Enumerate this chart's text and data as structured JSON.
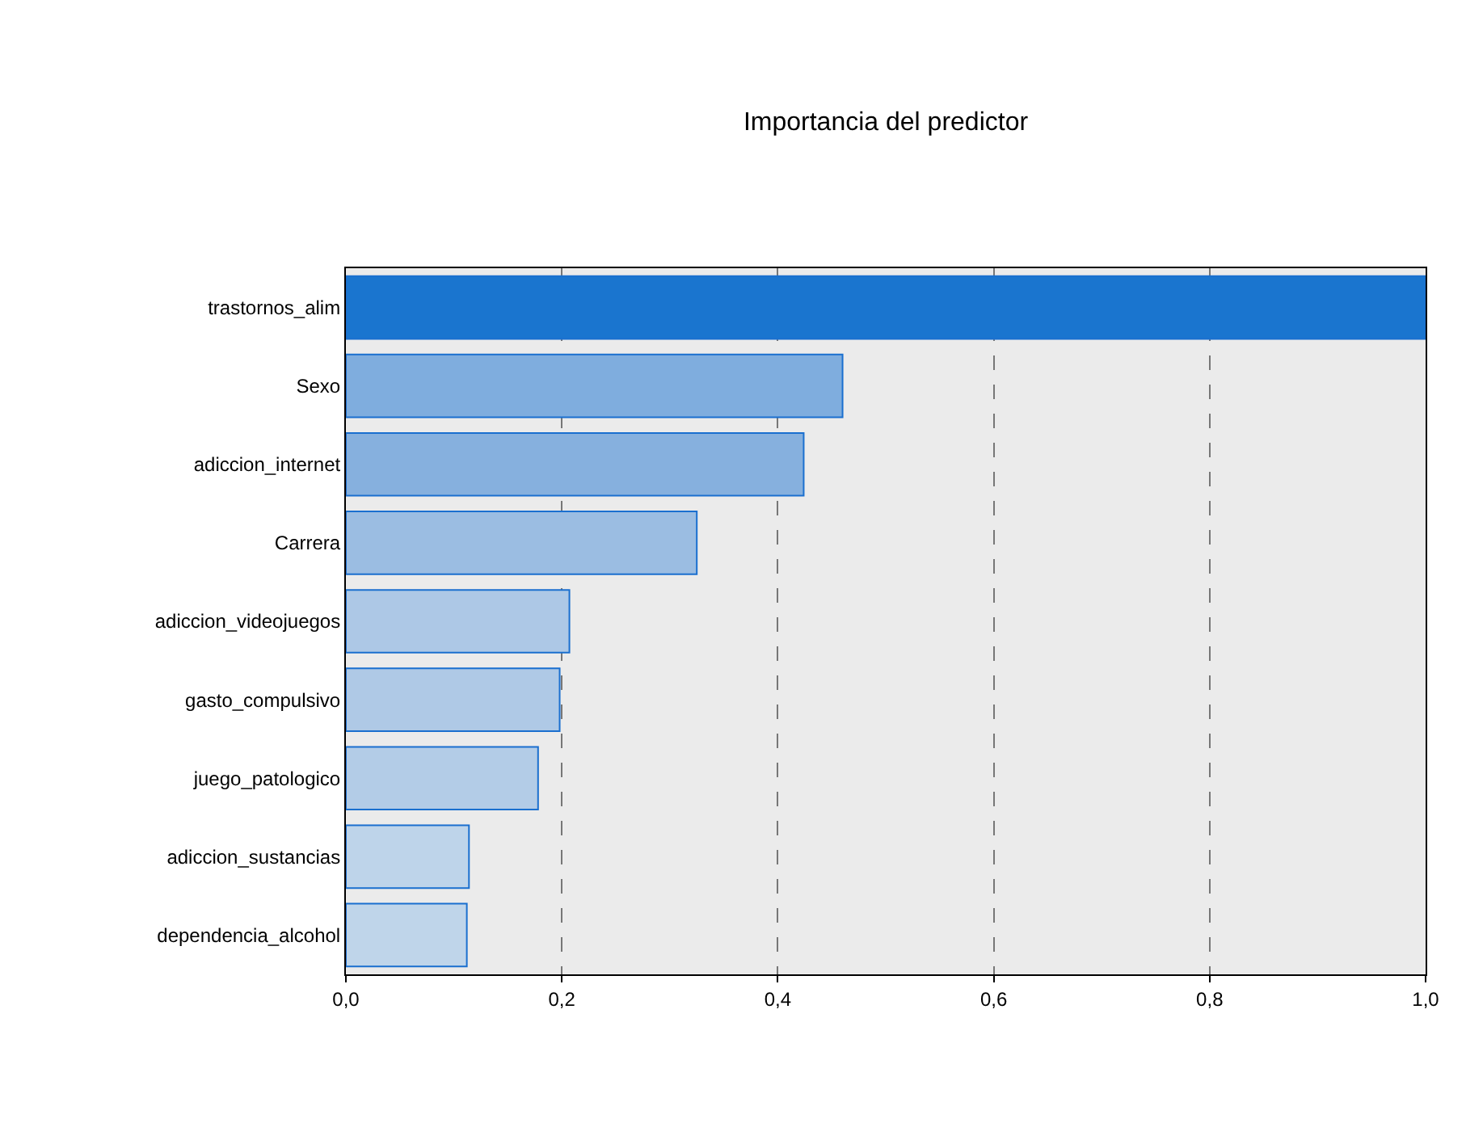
{
  "chart_data": {
    "type": "bar",
    "orientation": "horizontal",
    "title": "Importancia del predictor",
    "categories": [
      "trastornos_alim",
      "Sexo",
      "adiccion_internet",
      "Carrera",
      "adiccion_videojuegos",
      "gasto_compulsivo",
      "juego_patologico",
      "adiccion_sustancias",
      "dependencia_alcohol"
    ],
    "values": [
      1.0,
      0.46,
      0.424,
      0.325,
      0.207,
      0.198,
      0.178,
      0.114,
      0.112
    ],
    "colors": [
      "#1a75cf",
      "#7fadde",
      "#86b0de",
      "#9bbde2",
      "#adc8e6",
      "#afc9e6",
      "#b3cce7",
      "#bed4ea",
      "#bfd5ea"
    ],
    "xlim": [
      0,
      1.0
    ],
    "xticks": [
      {
        "value": 0,
        "label": "0,0"
      },
      {
        "value": 0.2,
        "label": "0,2"
      },
      {
        "value": 0.4,
        "label": "0,4"
      },
      {
        "value": 0.6,
        "label": "0,6"
      },
      {
        "value": 0.8,
        "label": "0,8"
      },
      {
        "value": 1.0,
        "label": "1,0"
      }
    ],
    "grid": "x",
    "legend": false
  }
}
